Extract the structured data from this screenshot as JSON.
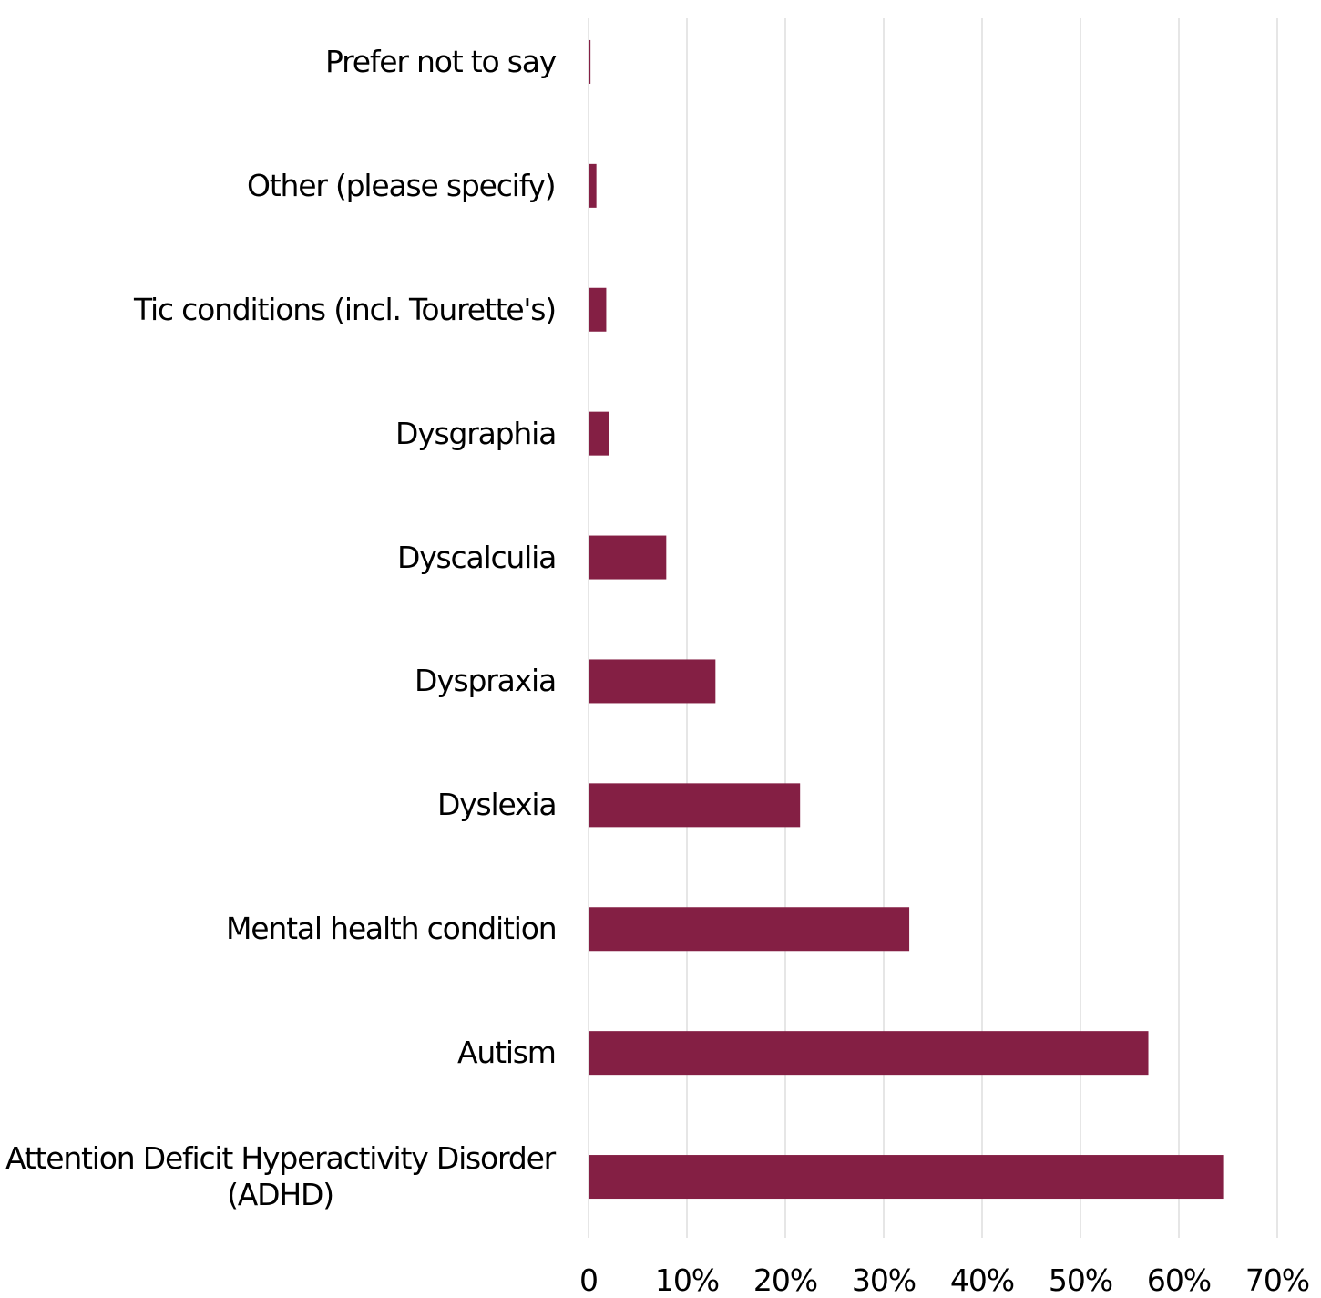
{
  "chart_data": {
    "type": "bar",
    "orientation": "horizontal",
    "categories": [
      "Prefer not to say",
      "Other (please specify)",
      "Tic conditions (incl. Tourette's)",
      "Dysgraphia",
      "Dyscalculia",
      "Dyspraxia",
      "Dyslexia",
      "Mental health condition",
      "Autism",
      "Attention Deficit Hyperactivity Disorder (ADHD)"
    ],
    "values": [
      0.2,
      0.8,
      1.8,
      2.1,
      7.9,
      12.9,
      21.5,
      32.6,
      56.9,
      64.5
    ],
    "color": "#841f44",
    "xlim": [
      0,
      70
    ],
    "xticks": [
      0,
      {
        "value": 10,
        "label": "10%"
      },
      {
        "value": 20,
        "label": "20%"
      },
      {
        "value": 30,
        "label": "30%"
      },
      {
        "value": 40,
        "label": "40%"
      },
      {
        "value": 50,
        "label": "50%"
      },
      {
        "value": 60,
        "label": "60%"
      },
      {
        "value": 70,
        "label": "70%"
      }
    ],
    "grid": true
  }
}
